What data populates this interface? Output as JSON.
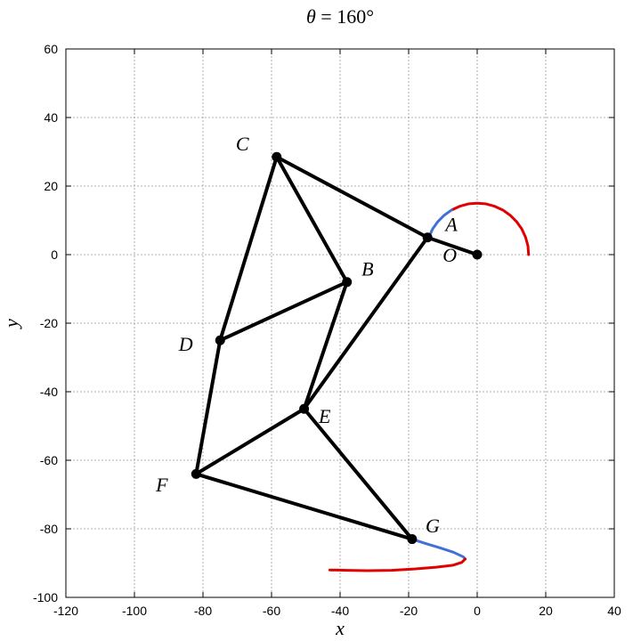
{
  "chart_data": {
    "type": "line",
    "title_var": "θ",
    "title_eq": " = 160°",
    "xlabel": "x",
    "ylabel": "y",
    "xlim": [
      -120,
      40
    ],
    "ylim": [
      -100,
      60
    ],
    "xticks": [
      -120,
      -100,
      -80,
      -60,
      -40,
      -20,
      0,
      20,
      40
    ],
    "yticks": [
      -100,
      -80,
      -60,
      -40,
      -20,
      0,
      20,
      40,
      60
    ],
    "grid": true,
    "points": [
      {
        "name": "O",
        "x": 0,
        "y": 0,
        "label_dx": -8,
        "label_dy": 0
      },
      {
        "name": "A",
        "x": -14.5,
        "y": 5,
        "label_dx": 7,
        "label_dy": 4
      },
      {
        "name": "B",
        "x": -38,
        "y": -8,
        "label_dx": 6,
        "label_dy": 4
      },
      {
        "name": "C",
        "x": -58.5,
        "y": 28.5,
        "label_dx": -10,
        "label_dy": 4
      },
      {
        "name": "D",
        "x": -75,
        "y": -25,
        "label_dx": -10,
        "label_dy": -1
      },
      {
        "name": "E",
        "x": -50.5,
        "y": -45,
        "label_dx": 6,
        "label_dy": -2
      },
      {
        "name": "F",
        "x": -82,
        "y": -64,
        "label_dx": -10,
        "label_dy": -3
      },
      {
        "name": "G",
        "x": -19,
        "y": -83,
        "label_dx": 6,
        "label_dy": 4
      }
    ],
    "links": [
      [
        "O",
        "A"
      ],
      [
        "A",
        "C"
      ],
      [
        "A",
        "E"
      ],
      [
        "C",
        "B"
      ],
      [
        "C",
        "D"
      ],
      [
        "B",
        "D"
      ],
      [
        "B",
        "E"
      ],
      [
        "D",
        "F"
      ],
      [
        "E",
        "F"
      ],
      [
        "E",
        "G"
      ],
      [
        "F",
        "G"
      ]
    ],
    "crank_path": {
      "red": [
        [
          15,
          0
        ],
        [
          14.8,
          2.6
        ],
        [
          14.1,
          5.1
        ],
        [
          13,
          7.5
        ],
        [
          11.5,
          9.6
        ],
        [
          9.6,
          11.5
        ],
        [
          7.5,
          13
        ],
        [
          5.1,
          14.1
        ],
        [
          2.6,
          14.8
        ],
        [
          0,
          15
        ],
        [
          -2.6,
          14.8
        ],
        [
          -5.1,
          14.1
        ],
        [
          -7.5,
          13
        ]
      ],
      "blue": [
        [
          -7.5,
          13
        ],
        [
          -9.6,
          11.5
        ],
        [
          -11.5,
          9.6
        ],
        [
          -13,
          7.5
        ],
        [
          -14.1,
          5.1
        ]
      ]
    },
    "foot_path": {
      "blue": [
        [
          -19,
          -83
        ],
        [
          -15,
          -84.3
        ],
        [
          -11,
          -85.5
        ],
        [
          -7,
          -86.8
        ],
        [
          -4,
          -88.2
        ],
        [
          -3.5,
          -88.8
        ]
      ],
      "red": [
        [
          -3.5,
          -88.8
        ],
        [
          -4.5,
          -89.8
        ],
        [
          -7,
          -90.6
        ],
        [
          -12,
          -91.2
        ],
        [
          -18,
          -91.7
        ],
        [
          -25,
          -92.1
        ],
        [
          -32,
          -92.2
        ],
        [
          -38,
          -92.1
        ],
        [
          -43,
          -92
        ]
      ]
    },
    "colors": {
      "links": "#000000",
      "red_path": "#e00000",
      "blue_path": "#4070d8",
      "grid": "#999999"
    }
  }
}
